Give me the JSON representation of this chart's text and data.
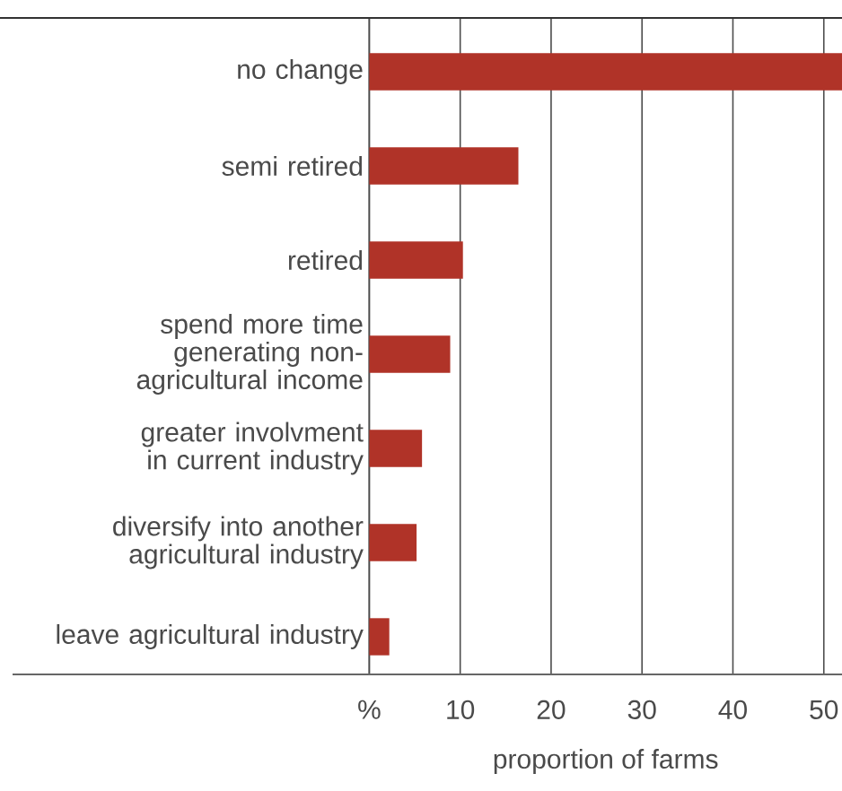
{
  "chart_data": {
    "type": "bar",
    "orientation": "horizontal",
    "xlabel": "proportion of farms",
    "categories": [
      "no change",
      "semi retired",
      "retired",
      "spend more time generating non-agricultural income",
      "greater involvment in current industry",
      "diversify into another agricultural industry",
      "leave agricultural industry"
    ],
    "values": [
      52,
      16.4,
      10.3,
      8.9,
      5.8,
      5.2,
      2.2
    ],
    "color": "#b03328",
    "xlim": [
      0,
      52
    ],
    "xticks": [
      {
        "value": 0,
        "label": "%"
      },
      10,
      20,
      30,
      40,
      50
    ],
    "grid": "x"
  }
}
